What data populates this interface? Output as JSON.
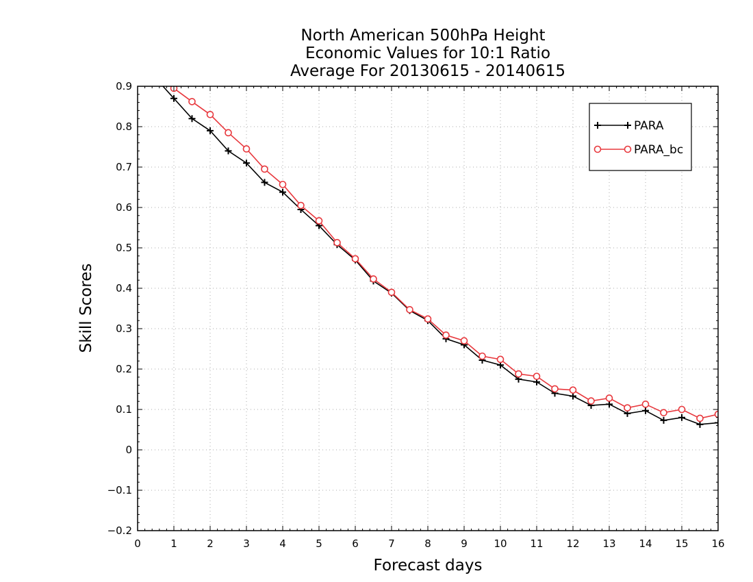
{
  "chart_data": {
    "type": "line",
    "title_lines": [
      "North American 500hPa Height",
      "Economic Values for 10:1 Ratio",
      "Average For 20130615 - 20140615"
    ],
    "xlabel": "Forecast days",
    "ylabel": "Skill Scores",
    "xlim": [
      0,
      16
    ],
    "ylim": [
      -0.2,
      0.9
    ],
    "xticks": [
      "0",
      "1",
      "2",
      "3",
      "4",
      "5",
      "6",
      "7",
      "8",
      "9",
      "10",
      "11",
      "12",
      "13",
      "14",
      "15",
      "16"
    ],
    "yticks": [
      "−0.2",
      "−0.1",
      "0",
      "0.1",
      "0.2",
      "0.3",
      "0.4",
      "0.5",
      "0.6",
      "0.7",
      "0.8",
      "0.9"
    ],
    "grid": true,
    "legend_position": "top-right",
    "x": [
      0.5,
      1,
      1.5,
      2,
      2.5,
      3,
      3.5,
      4,
      4.5,
      5,
      5.5,
      6,
      6.5,
      7,
      7.5,
      8,
      8.5,
      9,
      9.5,
      10,
      10.5,
      11,
      11.5,
      12,
      12.5,
      13,
      13.5,
      14,
      14.5,
      15,
      15.5,
      16
    ],
    "series": [
      {
        "name": "PARA",
        "color": "#000000",
        "marker": "plus",
        "values": [
          0.92,
          0.87,
          0.82,
          0.79,
          0.74,
          0.71,
          0.662,
          0.638,
          0.595,
          0.555,
          0.508,
          0.47,
          0.418,
          0.388,
          0.345,
          0.32,
          0.275,
          0.26,
          0.222,
          0.21,
          0.175,
          0.168,
          0.14,
          0.133,
          0.11,
          0.113,
          0.09,
          0.097,
          0.073,
          0.08,
          0.063,
          0.067
        ]
      },
      {
        "name": "PARA_bc",
        "color": "#e8383d",
        "marker": "circle",
        "values": [
          0.95,
          0.895,
          0.862,
          0.83,
          0.785,
          0.745,
          0.695,
          0.657,
          0.605,
          0.567,
          0.513,
          0.473,
          0.423,
          0.39,
          0.347,
          0.324,
          0.284,
          0.27,
          0.232,
          0.224,
          0.188,
          0.182,
          0.151,
          0.148,
          0.121,
          0.128,
          0.104,
          0.113,
          0.092,
          0.1,
          0.078,
          0.088
        ]
      }
    ]
  }
}
